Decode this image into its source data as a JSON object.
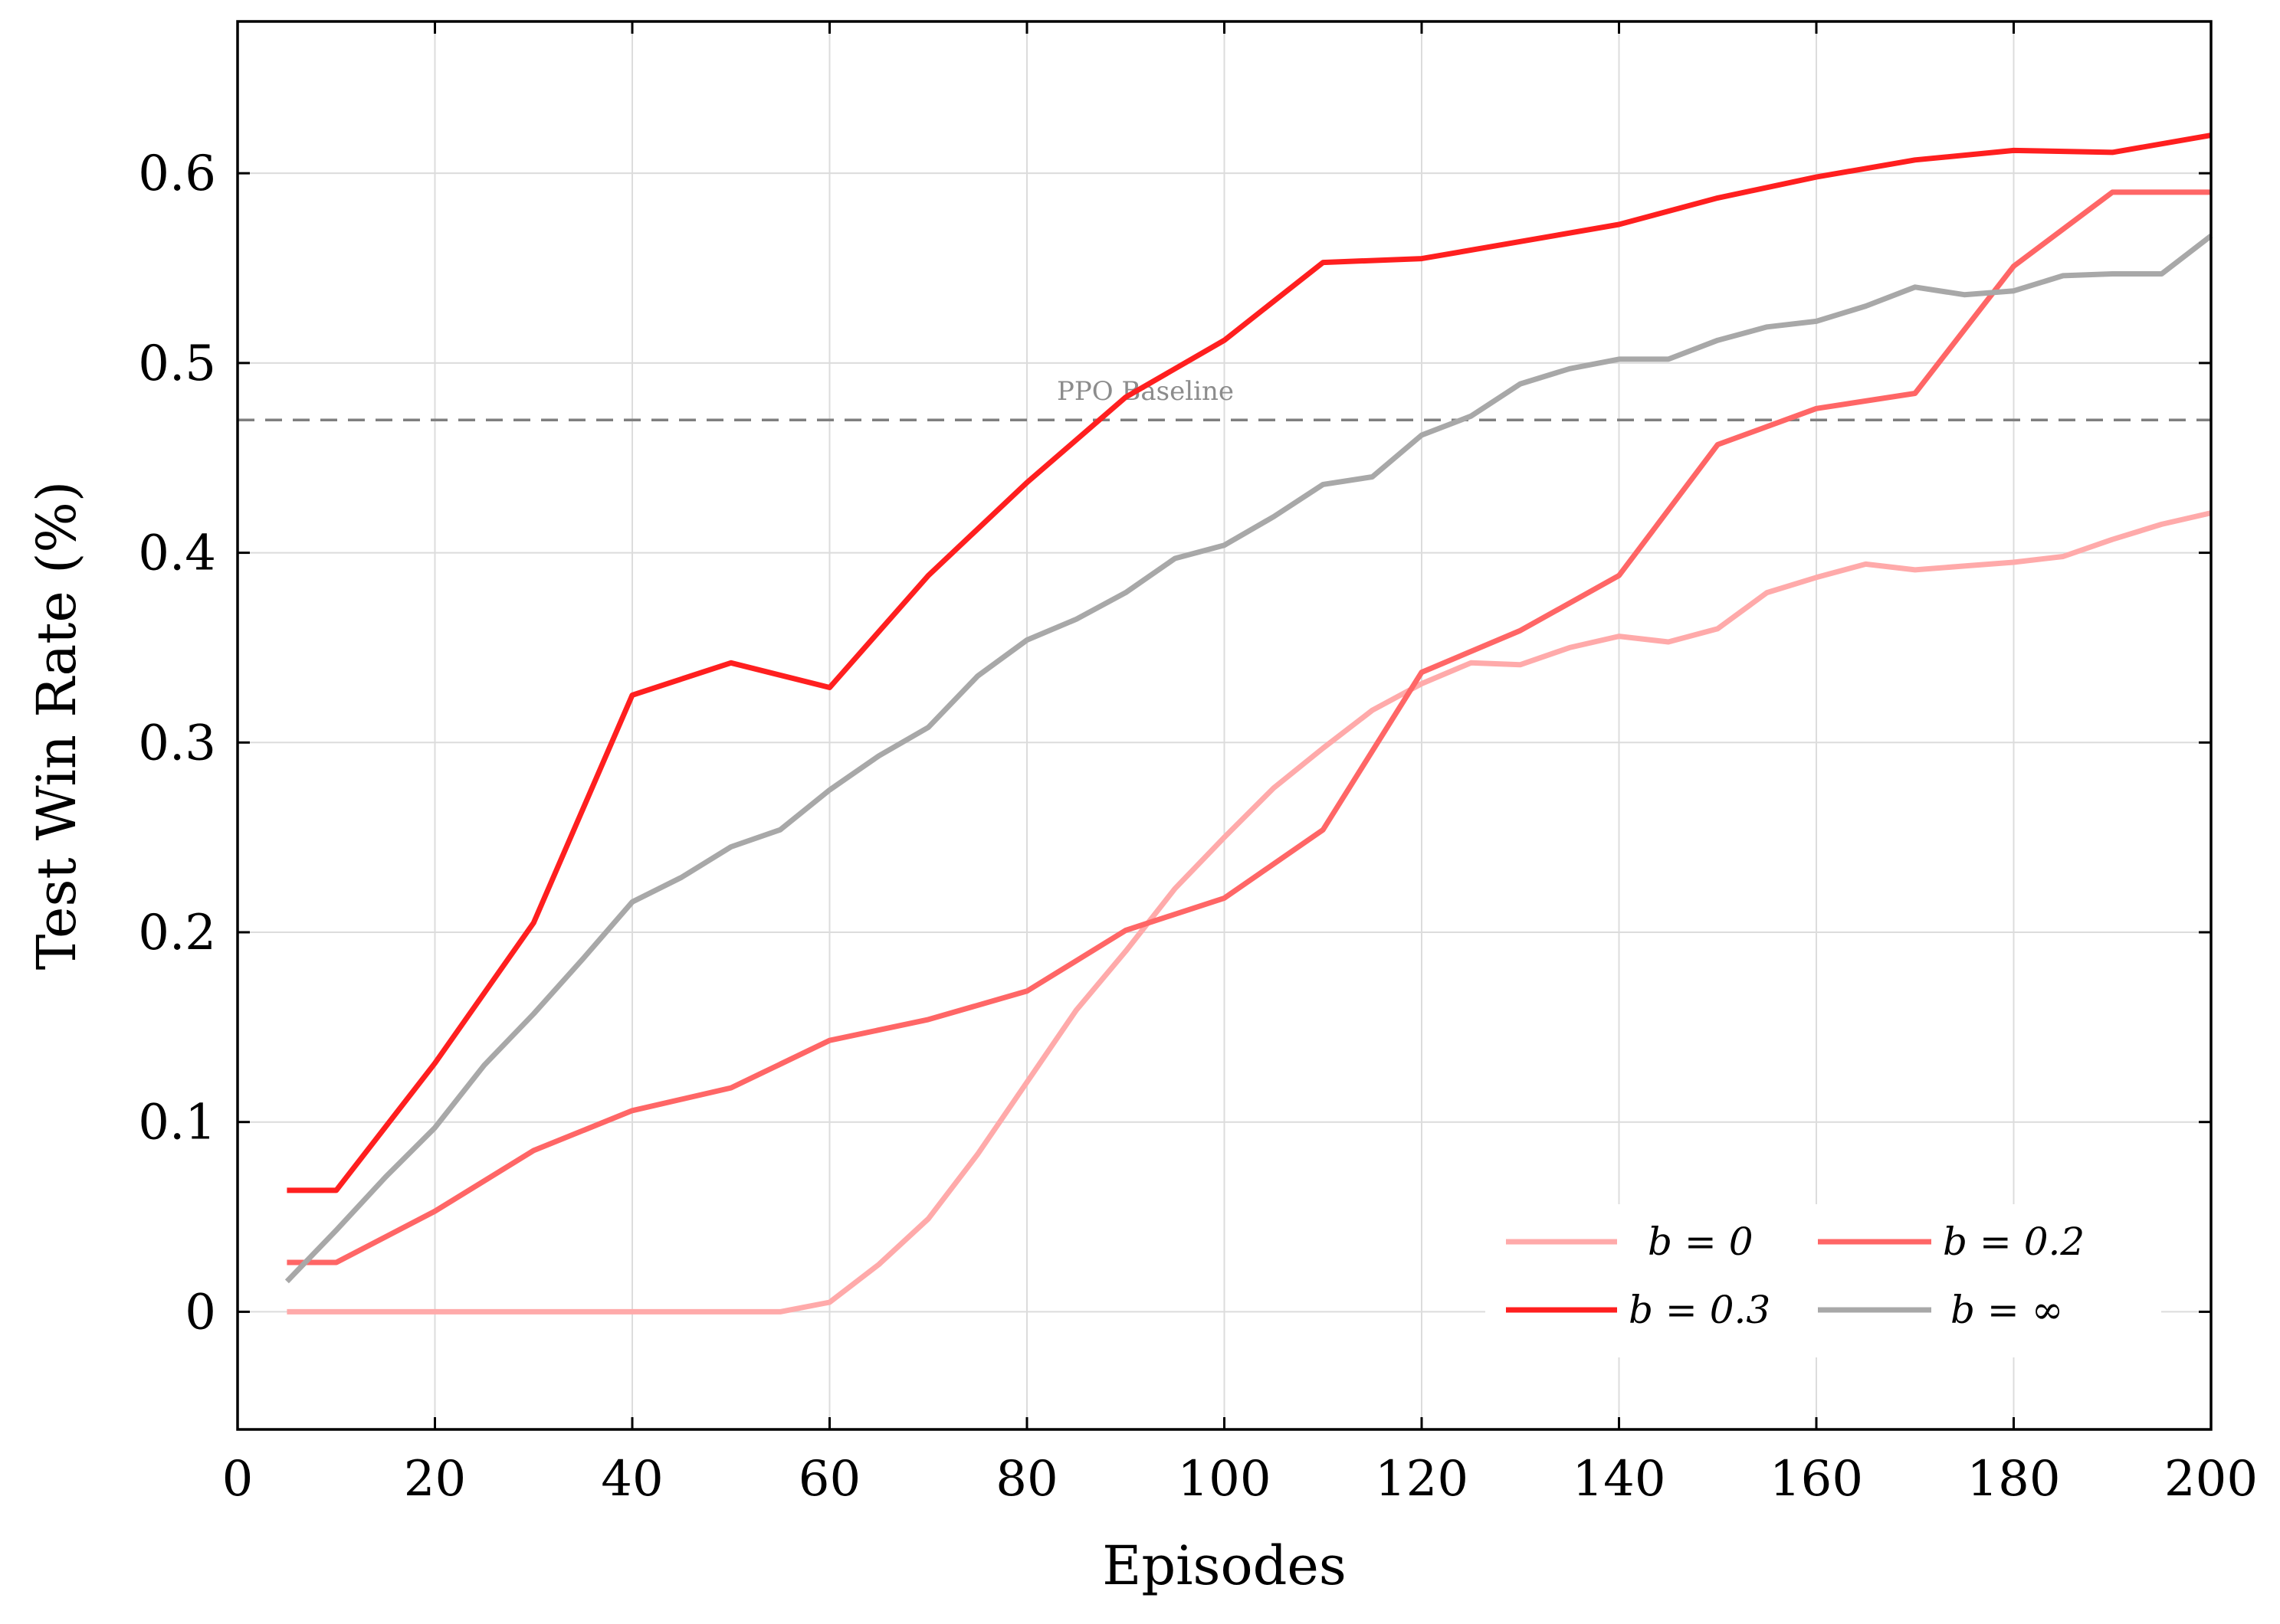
{
  "chart_data": {
    "type": "line",
    "xlabel": "Episodes",
    "ylabel": "Test Win Rate (%)",
    "xlim": [
      0,
      200
    ],
    "ylim": [
      -0.062,
      0.68
    ],
    "xticks": [
      0,
      20,
      40,
      60,
      80,
      100,
      120,
      140,
      160,
      180,
      200
    ],
    "xtick_labels": [
      "0",
      "20",
      "40",
      "60",
      "80",
      "100",
      "120",
      "140",
      "160",
      "180",
      "200"
    ],
    "yticks": [
      0,
      0.1,
      0.2,
      0.3,
      0.4,
      0.5,
      0.6
    ],
    "ytick_labels": [
      "0",
      "0.1",
      "0.2",
      "0.3",
      "0.4",
      "0.5",
      "0.6"
    ],
    "grid": true,
    "legend_position": "bottom-right",
    "baseline": {
      "label": "PPO Baseline",
      "value": 0.47,
      "color": "#7f7f7f"
    },
    "series": [
      {
        "name": "b = 0",
        "color": "#ffaaaa",
        "x": [
          5,
          10,
          15,
          20,
          25,
          30,
          35,
          40,
          45,
          50,
          55,
          60,
          65,
          70,
          75,
          80,
          85,
          90,
          95,
          100,
          105,
          110,
          115,
          120,
          125,
          130,
          135,
          140,
          145,
          150,
          155,
          160,
          165,
          170,
          175,
          180,
          185,
          190,
          195,
          200
        ],
        "values": [
          0,
          0,
          0,
          0,
          0,
          0,
          0,
          0,
          0,
          0,
          0,
          0.005,
          0.025,
          0.049,
          0.083,
          0.121,
          0.159,
          0.19,
          0.223,
          0.25,
          0.276,
          0.297,
          0.317,
          0.331,
          0.342,
          0.341,
          0.35,
          0.356,
          0.353,
          0.36,
          0.379,
          0.387,
          0.394,
          0.391,
          0.393,
          0.395,
          0.398,
          0.407,
          0.415,
          0.421
        ]
      },
      {
        "name": "b = 0.2",
        "color": "#ff6666",
        "x": [
          5,
          10,
          20,
          30,
          40,
          50,
          60,
          70,
          80,
          90,
          100,
          110,
          120,
          130,
          140,
          150,
          160,
          170,
          180,
          190,
          200
        ],
        "values": [
          0.026,
          0.026,
          0.053,
          0.085,
          0.106,
          0.118,
          0.143,
          0.154,
          0.169,
          0.201,
          0.218,
          0.254,
          0.337,
          0.359,
          0.388,
          0.457,
          0.476,
          0.484,
          0.551,
          0.59,
          0.59
        ]
      },
      {
        "name": "b = 0.3",
        "color": "#ff1f1f",
        "x": [
          5,
          10,
          20,
          30,
          40,
          50,
          60,
          70,
          80,
          90,
          100,
          110,
          120,
          130,
          140,
          150,
          160,
          170,
          180,
          190,
          200
        ],
        "values": [
          0.064,
          0.064,
          0.131,
          0.205,
          0.325,
          0.342,
          0.329,
          0.388,
          0.437,
          0.482,
          0.512,
          0.553,
          0.555,
          0.564,
          0.573,
          0.587,
          0.598,
          0.607,
          0.612,
          0.611,
          0.62
        ]
      },
      {
        "name": "b = ∞",
        "color": "#a8a8a8",
        "x": [
          5,
          10,
          15,
          20,
          25,
          30,
          35,
          40,
          45,
          50,
          55,
          60,
          65,
          70,
          75,
          80,
          85,
          90,
          95,
          100,
          105,
          110,
          115,
          120,
          125,
          130,
          135,
          140,
          145,
          150,
          155,
          160,
          165,
          170,
          175,
          180,
          185,
          190,
          195,
          200
        ],
        "values": [
          0.016,
          0.043,
          0.071,
          0.097,
          0.13,
          0.157,
          0.186,
          0.216,
          0.229,
          0.245,
          0.254,
          0.275,
          0.293,
          0.308,
          0.335,
          0.354,
          0.365,
          0.379,
          0.397,
          0.404,
          0.419,
          0.436,
          0.44,
          0.462,
          0.472,
          0.489,
          0.497,
          0.502,
          0.502,
          0.512,
          0.519,
          0.522,
          0.53,
          0.54,
          0.536,
          0.538,
          0.546,
          0.547,
          0.547,
          0.567
        ]
      }
    ]
  }
}
